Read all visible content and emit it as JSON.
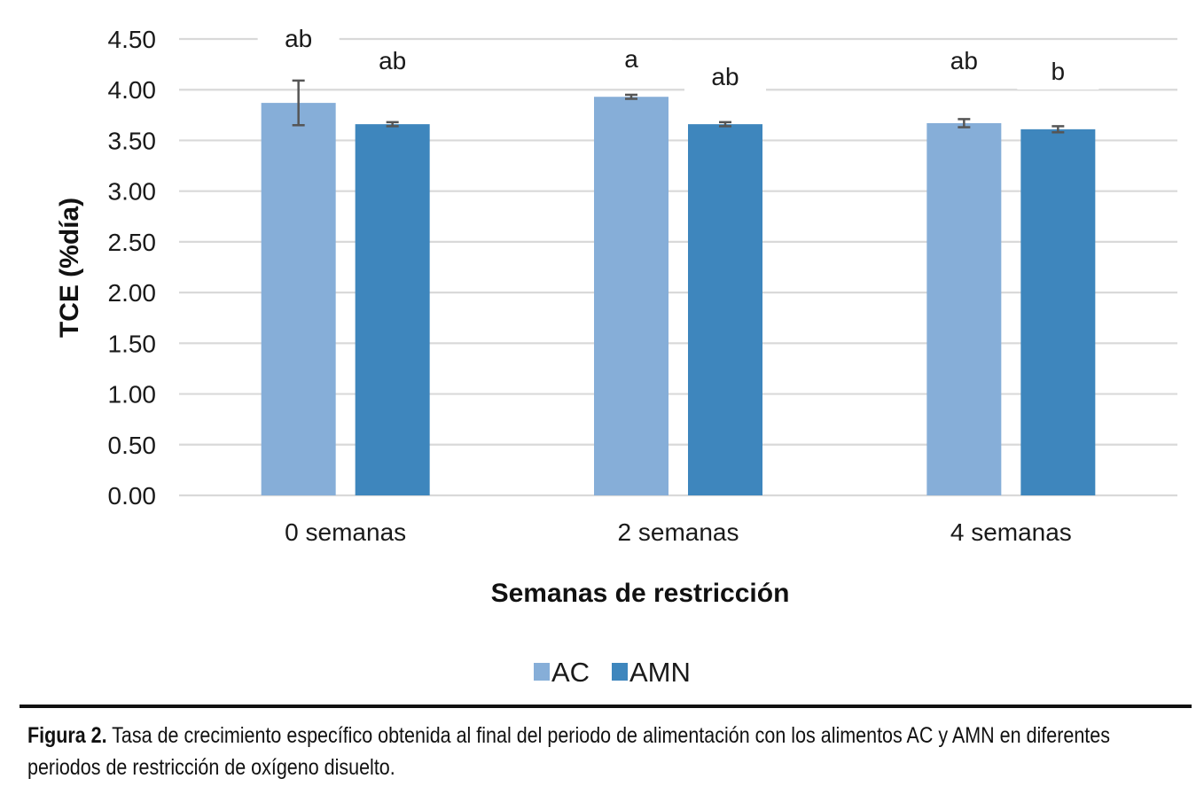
{
  "chart_data": {
    "type": "bar",
    "categories": [
      "0 semanas",
      "2 semanas",
      "4 semanas"
    ],
    "series": [
      {
        "name": "AC",
        "color": "#86aed8",
        "values": [
          3.87,
          3.93,
          3.67
        ],
        "errors": [
          0.22,
          0.02,
          0.04
        ],
        "labels": [
          "ab",
          "a",
          "ab"
        ]
      },
      {
        "name": "AMN",
        "color": "#3e86bd",
        "values": [
          3.66,
          3.66,
          3.61
        ],
        "errors": [
          0.02,
          0.02,
          0.03
        ],
        "labels": [
          "ab",
          "ab",
          "b"
        ]
      }
    ],
    "yticks": [
      "0.00",
      "0.50",
      "1.00",
      "1.50",
      "2.00",
      "2.50",
      "3.00",
      "3.50",
      "4.00",
      "4.50"
    ],
    "ylim": [
      0,
      4.5
    ],
    "xlabel": "Semanas de restricción",
    "ylabel": "TCE (%día)",
    "legend_position": "bottom",
    "grid": true
  },
  "caption": {
    "label": "Figura 2.",
    "text": " Tasa de crecimiento específico obtenida al final del periodo de alimentación con los alimentos AC y AMN en diferentes periodos de restricción de oxígeno disuelto."
  }
}
